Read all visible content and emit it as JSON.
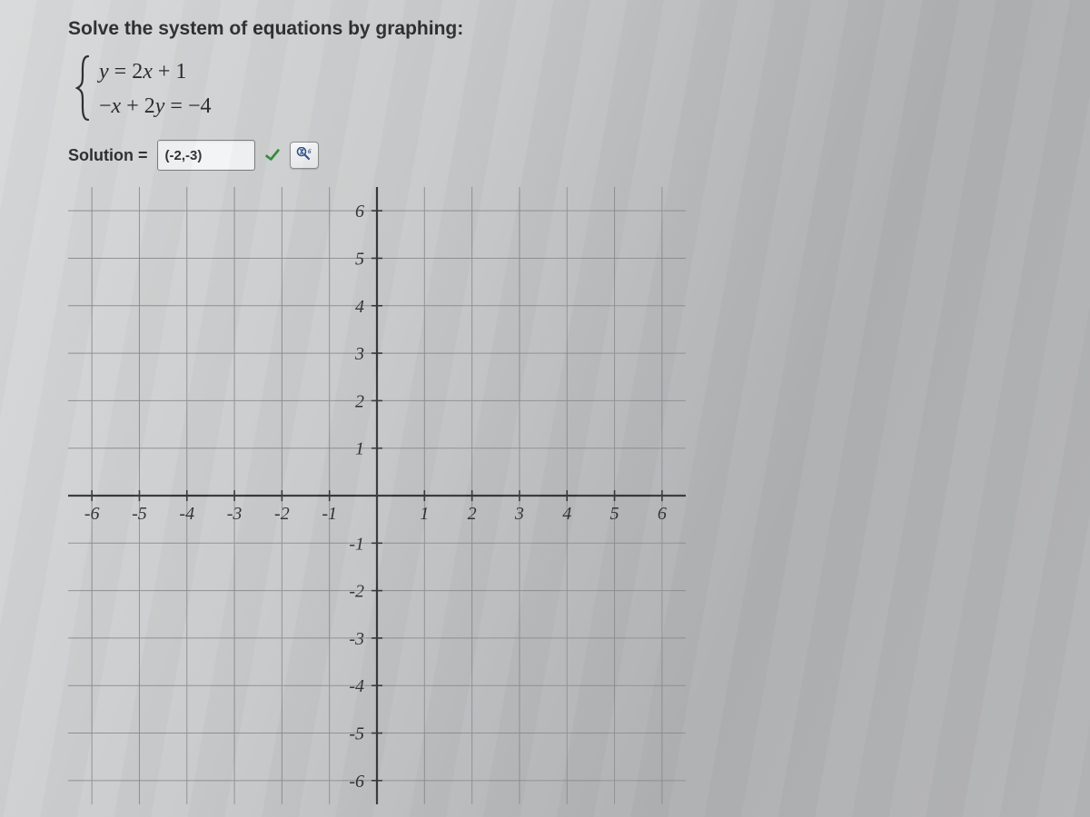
{
  "title": "Solve the system of equations by graphing:",
  "equation1_html": "y = 2x + 1",
  "equation2_html": "−x + 2y = −4",
  "solution_label": "Solution =",
  "solution_value": "(-2,-3)",
  "checkmark_color": "#2e8b3a",
  "preview_icon_color": "#2f4f8a",
  "graph": {
    "type": "cartesian-grid",
    "svg_size": 680,
    "units": 13,
    "xmin": -6.5,
    "xmax": 6.5,
    "ymin": -6.5,
    "ymax": 6.5,
    "grid_step": 1,
    "tick_min": -6,
    "tick_max": 6,
    "grid_color": "#8f9192",
    "grid_width": 1,
    "axis_color": "#39393a",
    "axis_width": 2.2,
    "tick_font_size": 20,
    "tick_font_family": "Times New Roman, serif",
    "tick_font_style": "italic",
    "tick_color": "#333333",
    "tick_len": 6,
    "x_labels": [
      "-6",
      "-5",
      "-4",
      "-3",
      "-2",
      "-1",
      "1",
      "2",
      "3",
      "4",
      "5",
      "6"
    ],
    "y_labels": [
      "-6",
      "-5",
      "-4",
      "-3",
      "-2",
      "-1",
      "1",
      "2",
      "3",
      "4",
      "5",
      "6"
    ]
  }
}
